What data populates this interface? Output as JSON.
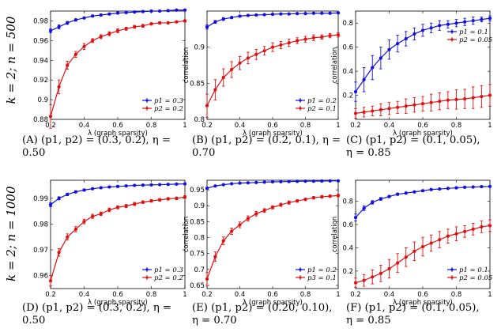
{
  "row_labels": [
    "k = 2;   n = 500",
    "k = 2;   n = 1000"
  ],
  "colors": {
    "blue": "#1010e0",
    "red": "#e01010"
  },
  "chart_data": [
    {
      "type": "line",
      "panel": "A",
      "caption_line1": "(A) (p1, p2) = (0.3, 0.2), η =",
      "caption_line2": "0.50",
      "xlabel": "λ (graph sparsity)",
      "ylabel": "",
      "xlim": [
        0.2,
        1.0
      ],
      "ylim": [
        0.88,
        0.99
      ],
      "xticks": [
        0.2,
        0.4,
        0.6,
        0.8,
        1.0
      ],
      "xtick_labels": [
        "0.2",
        "0.4",
        "0.6",
        "0.8",
        "1"
      ],
      "yticks": [
        0.88,
        0.9,
        0.92,
        0.94,
        0.96,
        0.98
      ],
      "ytick_labels": [
        "0.88",
        "0.9",
        "0.92",
        "0.94",
        "0.96",
        "0.98"
      ],
      "legend_loc": "bottom-right",
      "x": [
        0.2,
        0.25,
        0.3,
        0.35,
        0.4,
        0.45,
        0.5,
        0.55,
        0.6,
        0.65,
        0.7,
        0.75,
        0.8,
        0.85,
        0.9,
        0.95,
        1.0
      ],
      "series": [
        {
          "name": "p1 = 0.3",
          "color": "#1010e0",
          "values": [
            0.97,
            0.974,
            0.978,
            0.981,
            0.983,
            0.985,
            0.986,
            0.987,
            0.988,
            0.9885,
            0.989,
            0.9895,
            0.99,
            0.99,
            0.9905,
            0.991,
            0.991
          ],
          "err": [
            0.002,
            0.002,
            0.0015,
            0.0012,
            0.001,
            0.001,
            0.001,
            0.001,
            0.001,
            0.0008,
            0.0008,
            0.0008,
            0.0008,
            0.0007,
            0.0007,
            0.0007,
            0.0007
          ]
        },
        {
          "name": "p2 = 0.2",
          "color": "#e01010",
          "values": [
            0.883,
            0.913,
            0.935,
            0.946,
            0.954,
            0.96,
            0.964,
            0.967,
            0.97,
            0.972,
            0.974,
            0.975,
            0.977,
            0.978,
            0.978,
            0.979,
            0.98
          ],
          "err": [
            0.012,
            0.007,
            0.004,
            0.003,
            0.003,
            0.002,
            0.002,
            0.002,
            0.002,
            0.0015,
            0.0015,
            0.0015,
            0.0012,
            0.0012,
            0.001,
            0.001,
            0.001
          ]
        }
      ]
    },
    {
      "type": "line",
      "panel": "B",
      "caption_line1": "(B) (p1, p2) = (0.2, 0.1), η =",
      "caption_line2": "0.70",
      "xlabel": "λ (graph sparsity)",
      "ylabel": "correlation",
      "xlim": [
        0.2,
        1.0
      ],
      "ylim": [
        0.8,
        0.95
      ],
      "xticks": [
        0.2,
        0.4,
        0.6,
        0.8,
        1.0
      ],
      "xtick_labels": [
        "0.2",
        "0.4",
        "0.6",
        "0.8",
        "1"
      ],
      "yticks": [
        0.8,
        0.85,
        0.9
      ],
      "ytick_labels": [
        "0.8",
        "0.85",
        "0.9"
      ],
      "legend_loc": "bottom-right",
      "x": [
        0.2,
        0.25,
        0.3,
        0.35,
        0.4,
        0.45,
        0.5,
        0.55,
        0.6,
        0.65,
        0.7,
        0.75,
        0.8,
        0.85,
        0.9,
        0.95,
        1.0
      ],
      "series": [
        {
          "name": "p1 = 0.2",
          "color": "#1010e0",
          "values": [
            0.928,
            0.935,
            0.939,
            0.941,
            0.943,
            0.944,
            0.9445,
            0.945,
            0.9455,
            0.946,
            0.946,
            0.9465,
            0.9465,
            0.947,
            0.947,
            0.947,
            0.9475
          ],
          "err": [
            0.003,
            0.002,
            0.002,
            0.0015,
            0.0012,
            0.001,
            0.001,
            0.001,
            0.001,
            0.001,
            0.001,
            0.0008,
            0.0008,
            0.0008,
            0.0008,
            0.0008,
            0.0008
          ]
        },
        {
          "name": "p2 = 0.1",
          "color": "#e01010",
          "values": [
            0.819,
            0.841,
            0.858,
            0.869,
            0.878,
            0.885,
            0.89,
            0.895,
            0.9,
            0.903,
            0.906,
            0.909,
            0.911,
            0.913,
            0.914,
            0.916,
            0.917
          ],
          "err": [
            0.016,
            0.014,
            0.012,
            0.011,
            0.009,
            0.008,
            0.007,
            0.006,
            0.006,
            0.005,
            0.005,
            0.004,
            0.004,
            0.004,
            0.003,
            0.003,
            0.003
          ]
        }
      ]
    },
    {
      "type": "line",
      "panel": "C",
      "caption_line1": "(C)   (p1, p2)   =   (0.1, 0.05),",
      "caption_line2": "η = 0.85",
      "xlabel": "λ (graph sparsity)",
      "ylabel": "correlation",
      "xlim": [
        0.2,
        1.0
      ],
      "ylim": [
        0.0,
        0.9
      ],
      "xticks": [
        0.2,
        0.4,
        0.6,
        0.8,
        1.0
      ],
      "xtick_labels": [
        "0.2",
        "0.4",
        "0.6",
        "0.8",
        "1"
      ],
      "yticks": [
        0.2,
        0.4,
        0.6,
        0.8
      ],
      "ytick_labels": [
        "0.2",
        "0.4",
        "0.6",
        "0.8"
      ],
      "legend_loc": "top-right",
      "x": [
        0.2,
        0.25,
        0.3,
        0.35,
        0.4,
        0.45,
        0.5,
        0.55,
        0.6,
        0.65,
        0.7,
        0.75,
        0.8,
        0.85,
        0.9,
        0.95,
        1.0
      ],
      "series": [
        {
          "name": "p1 = 0.1",
          "color": "#1010e0",
          "values": [
            0.23,
            0.33,
            0.43,
            0.51,
            0.58,
            0.63,
            0.67,
            0.71,
            0.74,
            0.76,
            0.78,
            0.79,
            0.8,
            0.81,
            0.82,
            0.83,
            0.84
          ],
          "err": [
            0.08,
            0.1,
            0.1,
            0.09,
            0.08,
            0.07,
            0.06,
            0.05,
            0.05,
            0.04,
            0.04,
            0.03,
            0.03,
            0.03,
            0.03,
            0.02,
            0.02
          ]
        },
        {
          "name": "p2 = 0.05",
          "color": "#e01010",
          "values": [
            0.05,
            0.06,
            0.07,
            0.08,
            0.09,
            0.1,
            0.11,
            0.12,
            0.13,
            0.14,
            0.15,
            0.16,
            0.165,
            0.17,
            0.18,
            0.19,
            0.2
          ],
          "err": [
            0.04,
            0.04,
            0.04,
            0.05,
            0.05,
            0.05,
            0.06,
            0.06,
            0.06,
            0.07,
            0.07,
            0.07,
            0.08,
            0.08,
            0.09,
            0.09,
            0.09
          ]
        }
      ]
    },
    {
      "type": "line",
      "panel": "D",
      "caption_line1": "(D) (p1, p2) = (0.3, 0.2), η =",
      "caption_line2": "0.50",
      "xlabel": "λ (graph sparsity)",
      "ylabel": "",
      "xlim": [
        0.2,
        1.0
      ],
      "ylim": [
        0.955,
        0.997
      ],
      "xticks": [
        0.2,
        0.4,
        0.6,
        0.8,
        1.0
      ],
      "xtick_labels": [
        "0.2",
        "0.4",
        "0.6",
        "0.8",
        "1"
      ],
      "yticks": [
        0.96,
        0.97,
        0.98,
        0.99
      ],
      "ytick_labels": [
        "0.96",
        "0.97",
        "0.98",
        "0.99"
      ],
      "legend_loc": "bottom-right",
      "x": [
        0.2,
        0.25,
        0.3,
        0.35,
        0.4,
        0.45,
        0.5,
        0.55,
        0.6,
        0.65,
        0.7,
        0.75,
        0.8,
        0.85,
        0.9,
        0.95,
        1.0
      ],
      "series": [
        {
          "name": "p1 = 0.3",
          "color": "#1010e0",
          "values": [
            0.9875,
            0.99,
            0.9915,
            0.9925,
            0.9932,
            0.9937,
            0.9941,
            0.9944,
            0.9946,
            0.9948,
            0.995,
            0.9951,
            0.9952,
            0.9953,
            0.9954,
            0.9955,
            0.9956
          ],
          "err": [
            0.0008,
            0.0006,
            0.0005,
            0.0004,
            0.0004,
            0.0003,
            0.0003,
            0.0003,
            0.0003,
            0.0003,
            0.0003,
            0.0002,
            0.0002,
            0.0002,
            0.0002,
            0.0002,
            0.0002
          ]
        },
        {
          "name": "p2 = 0.2",
          "color": "#e01010",
          "values": [
            0.958,
            0.969,
            0.975,
            0.978,
            0.981,
            0.983,
            0.984,
            0.9855,
            0.9865,
            0.987,
            0.9878,
            0.9885,
            0.989,
            0.9894,
            0.9898,
            0.99,
            0.9905
          ],
          "err": [
            0.002,
            0.0015,
            0.0012,
            0.001,
            0.0009,
            0.0008,
            0.0007,
            0.0007,
            0.0006,
            0.0006,
            0.0006,
            0.0005,
            0.0005,
            0.0005,
            0.0005,
            0.0005,
            0.0005
          ]
        }
      ]
    },
    {
      "type": "line",
      "panel": "E",
      "caption_line1": "(E)   (p1, p2)   =   (0.20, 0.10),",
      "caption_line2": "η = 0.70",
      "xlabel": "λ (graph sparsity)",
      "ylabel": "correlation",
      "xlim": [
        0.2,
        1.0
      ],
      "ylim": [
        0.64,
        0.98
      ],
      "xticks": [
        0.2,
        0.4,
        0.6,
        0.8,
        1.0
      ],
      "xtick_labels": [
        "0.2",
        "0.4",
        "0.6",
        "0.8",
        "1"
      ],
      "yticks": [
        0.65,
        0.7,
        0.75,
        0.8,
        0.85,
        0.9,
        0.95
      ],
      "ytick_labels": [
        "0.65",
        "0.7",
        "0.75",
        "0.8",
        "0.85",
        "0.9",
        "0.95"
      ],
      "legend_loc": "bottom-right",
      "x": [
        0.2,
        0.25,
        0.3,
        0.35,
        0.4,
        0.45,
        0.5,
        0.55,
        0.6,
        0.65,
        0.7,
        0.75,
        0.8,
        0.85,
        0.9,
        0.95,
        1.0
      ],
      "series": [
        {
          "name": "p1 = 0.2",
          "color": "#1010e0",
          "values": [
            0.955,
            0.962,
            0.966,
            0.969,
            0.971,
            0.972,
            0.973,
            0.974,
            0.975,
            0.9755,
            0.976,
            0.9765,
            0.977,
            0.977,
            0.9775,
            0.978,
            0.978
          ],
          "err": [
            0.003,
            0.002,
            0.002,
            0.0015,
            0.0012,
            0.001,
            0.001,
            0.001,
            0.001,
            0.001,
            0.001,
            0.001,
            0.001,
            0.001,
            0.001,
            0.001,
            0.001
          ]
        },
        {
          "name": "p3 = 0.1",
          "color": "#e01010",
          "values": [
            0.67,
            0.74,
            0.79,
            0.82,
            0.84,
            0.86,
            0.875,
            0.885,
            0.895,
            0.903,
            0.91,
            0.915,
            0.92,
            0.925,
            0.928,
            0.93,
            0.932
          ],
          "err": [
            0.02,
            0.015,
            0.012,
            0.01,
            0.009,
            0.008,
            0.007,
            0.006,
            0.005,
            0.005,
            0.005,
            0.004,
            0.004,
            0.004,
            0.004,
            0.004,
            0.004
          ]
        }
      ]
    },
    {
      "type": "line",
      "panel": "F",
      "caption_line1": "(F)   (p1, p2)   =   (0.1, 0.05),",
      "caption_line2": "η = 0.85",
      "xlabel": "λ (graph sparsity)",
      "ylabel": "correlation",
      "xlim": [
        0.2,
        1.0
      ],
      "ylim": [
        0.05,
        0.98
      ],
      "xticks": [
        0.2,
        0.4,
        0.6,
        0.8,
        1.0
      ],
      "xtick_labels": [
        "0.2",
        "0.4",
        "0.6",
        "0.8",
        "1"
      ],
      "yticks": [
        0.2,
        0.4,
        0.6,
        0.8
      ],
      "ytick_labels": [
        "0.2",
        "0.4",
        "0.6",
        "0.8"
      ],
      "legend_loc": "bottom-right",
      "x": [
        0.2,
        0.25,
        0.3,
        0.35,
        0.4,
        0.45,
        0.5,
        0.55,
        0.6,
        0.65,
        0.7,
        0.75,
        0.8,
        0.85,
        0.9,
        0.95,
        1.0
      ],
      "series": [
        {
          "name": "p1 = 0.1",
          "color": "#1010e0",
          "values": [
            0.66,
            0.74,
            0.79,
            0.82,
            0.84,
            0.86,
            0.87,
            0.88,
            0.89,
            0.9,
            0.905,
            0.91,
            0.915,
            0.92,
            0.922,
            0.925,
            0.927
          ],
          "err": [
            0.03,
            0.02,
            0.015,
            0.012,
            0.01,
            0.01,
            0.008,
            0.008,
            0.007,
            0.007,
            0.006,
            0.006,
            0.006,
            0.005,
            0.005,
            0.005,
            0.005
          ]
        },
        {
          "name": "p2 = 0.05",
          "color": "#e01010",
          "values": [
            0.1,
            0.12,
            0.15,
            0.18,
            0.22,
            0.27,
            0.32,
            0.37,
            0.41,
            0.44,
            0.47,
            0.5,
            0.52,
            0.54,
            0.56,
            0.58,
            0.59
          ],
          "err": [
            0.04,
            0.05,
            0.06,
            0.07,
            0.08,
            0.08,
            0.08,
            0.08,
            0.08,
            0.07,
            0.07,
            0.06,
            0.06,
            0.05,
            0.05,
            0.05,
            0.05
          ]
        }
      ]
    }
  ]
}
